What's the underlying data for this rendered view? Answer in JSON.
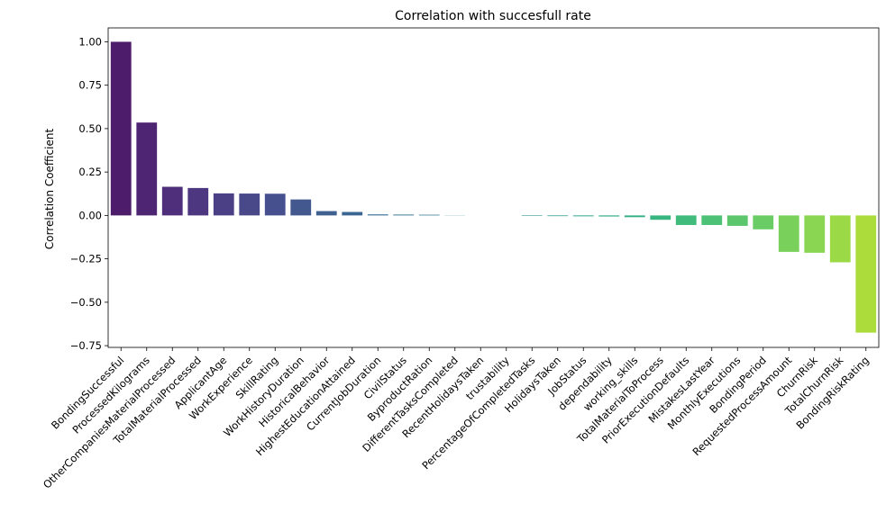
{
  "chart_data": {
    "type": "bar",
    "title": "Correlation with succesfull rate",
    "xlabel": "",
    "ylabel": "Correlation Coefficient",
    "ylim": [
      -0.76,
      1.08
    ],
    "yticks": [
      "1.00",
      "0.75",
      "0.50",
      "0.25",
      "0.00",
      "−0.25",
      "−0.50",
      "−0.75"
    ],
    "ytick_values": [
      1.0,
      0.75,
      0.5,
      0.25,
      0.0,
      -0.25,
      -0.5,
      -0.75
    ],
    "grid": false,
    "colormap": "viridis",
    "categories": [
      "BondingSuccessful",
      "ProcessedKilograms",
      "OtherCompaniesMaterialProcessed",
      "TotalMaterialProcessed",
      "ApplicantAge",
      "WorkExperience",
      "SkillRating",
      "WorkHistoryDuration",
      "HistoricalBehavior",
      "HighestEducationAttained",
      "CurrentJobDuration",
      "CivilStatus",
      "ByproductRation",
      "DifferentTasksCompleted",
      "RecentHolidaysTaken",
      "trustability",
      "PercentageOfCompletedTasks",
      "HolidaysTaken",
      "JobStatus",
      "dependability",
      "working_skills",
      "TotalMaterialToProcess",
      "PriorExecutionDefaults",
      "MistakesLastYear",
      "MonthlyExecutions",
      "BondingPeriod",
      "RequestedProcessAmount",
      "ChurnRisk",
      "TotalChurnRisk",
      "BondingRiskRating"
    ],
    "values": [
      1.0,
      0.535,
      0.165,
      0.158,
      0.127,
      0.126,
      0.125,
      0.092,
      0.025,
      0.02,
      0.006,
      0.005,
      0.004,
      0.001,
      0.0,
      0.0,
      -0.003,
      -0.004,
      -0.005,
      -0.006,
      -0.01,
      -0.025,
      -0.055,
      -0.055,
      -0.06,
      -0.08,
      -0.21,
      -0.215,
      -0.27,
      -0.675
    ]
  }
}
